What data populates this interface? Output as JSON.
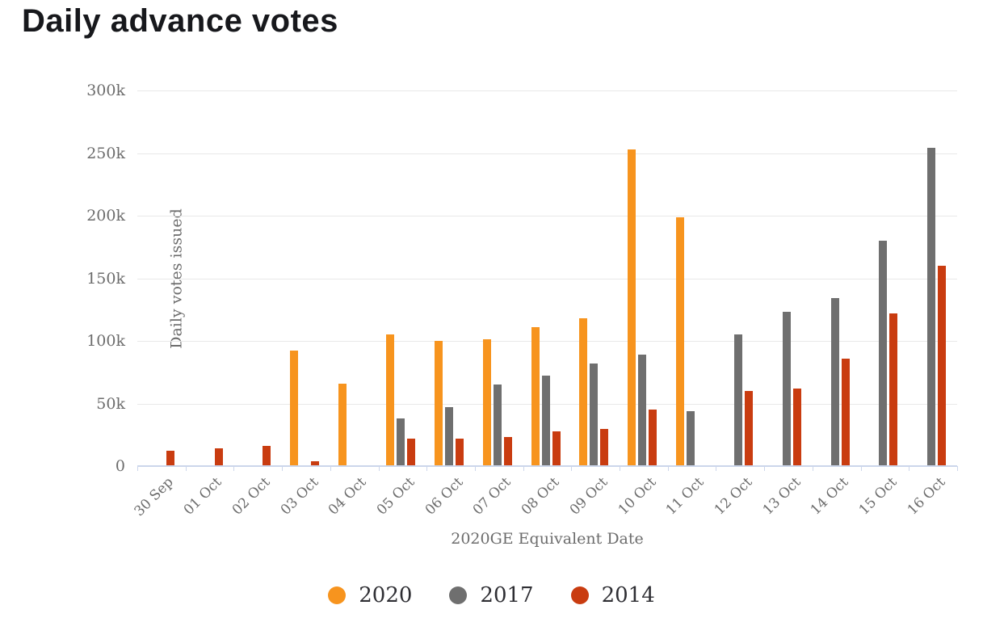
{
  "title": "Daily advance votes",
  "chart_data": {
    "type": "bar",
    "title": "Daily advance votes",
    "xlabel": "2020GE Equivalent Date",
    "ylabel": "Daily votes issued",
    "ylim": [
      0,
      300000
    ],
    "grid": true,
    "legend_position": "bottom",
    "y_ticks": [
      {
        "value": 300000,
        "label": "300k"
      },
      {
        "value": 250000,
        "label": "250k"
      },
      {
        "value": 200000,
        "label": "200k"
      },
      {
        "value": 150000,
        "label": "150k"
      },
      {
        "value": 100000,
        "label": "100k"
      },
      {
        "value": 50000,
        "label": "50k"
      },
      {
        "value": 0,
        "label": "0"
      }
    ],
    "categories": [
      "30 Sep",
      "01 Oct",
      "02 Oct",
      "03 Oct",
      "04 Oct",
      "05 Oct",
      "06 Oct",
      "07 Oct",
      "08 Oct",
      "09 Oct",
      "10 Oct",
      "11 Oct",
      "12 Oct",
      "13 Oct",
      "14 Oct",
      "15 Oct",
      "16 Oct"
    ],
    "series": [
      {
        "name": "2020",
        "color": "#F7941E",
        "values": [
          null,
          null,
          null,
          92000,
          66000,
          105000,
          100000,
          101000,
          111000,
          118000,
          253000,
          199000,
          null,
          null,
          null,
          null,
          null
        ]
      },
      {
        "name": "2017",
        "color": "#6F6F6F",
        "values": [
          null,
          null,
          null,
          null,
          null,
          38000,
          47000,
          65000,
          72000,
          82000,
          89000,
          44000,
          105000,
          123000,
          134000,
          180000,
          254000
        ]
      },
      {
        "name": "2014",
        "color": "#C93C10",
        "values": [
          12000,
          14000,
          16000,
          4000,
          null,
          22000,
          22000,
          23000,
          28000,
          30000,
          45000,
          null,
          60000,
          62000,
          86000,
          122000,
          160000
        ]
      }
    ]
  },
  "colors": {
    "background": "#FFFFFF",
    "gridline": "#E8E8E8",
    "axis_line": "#CCD6EB",
    "tick_text": "#6C6C6C",
    "title_text": "#17181C",
    "legend_text": "#2E2E33"
  }
}
